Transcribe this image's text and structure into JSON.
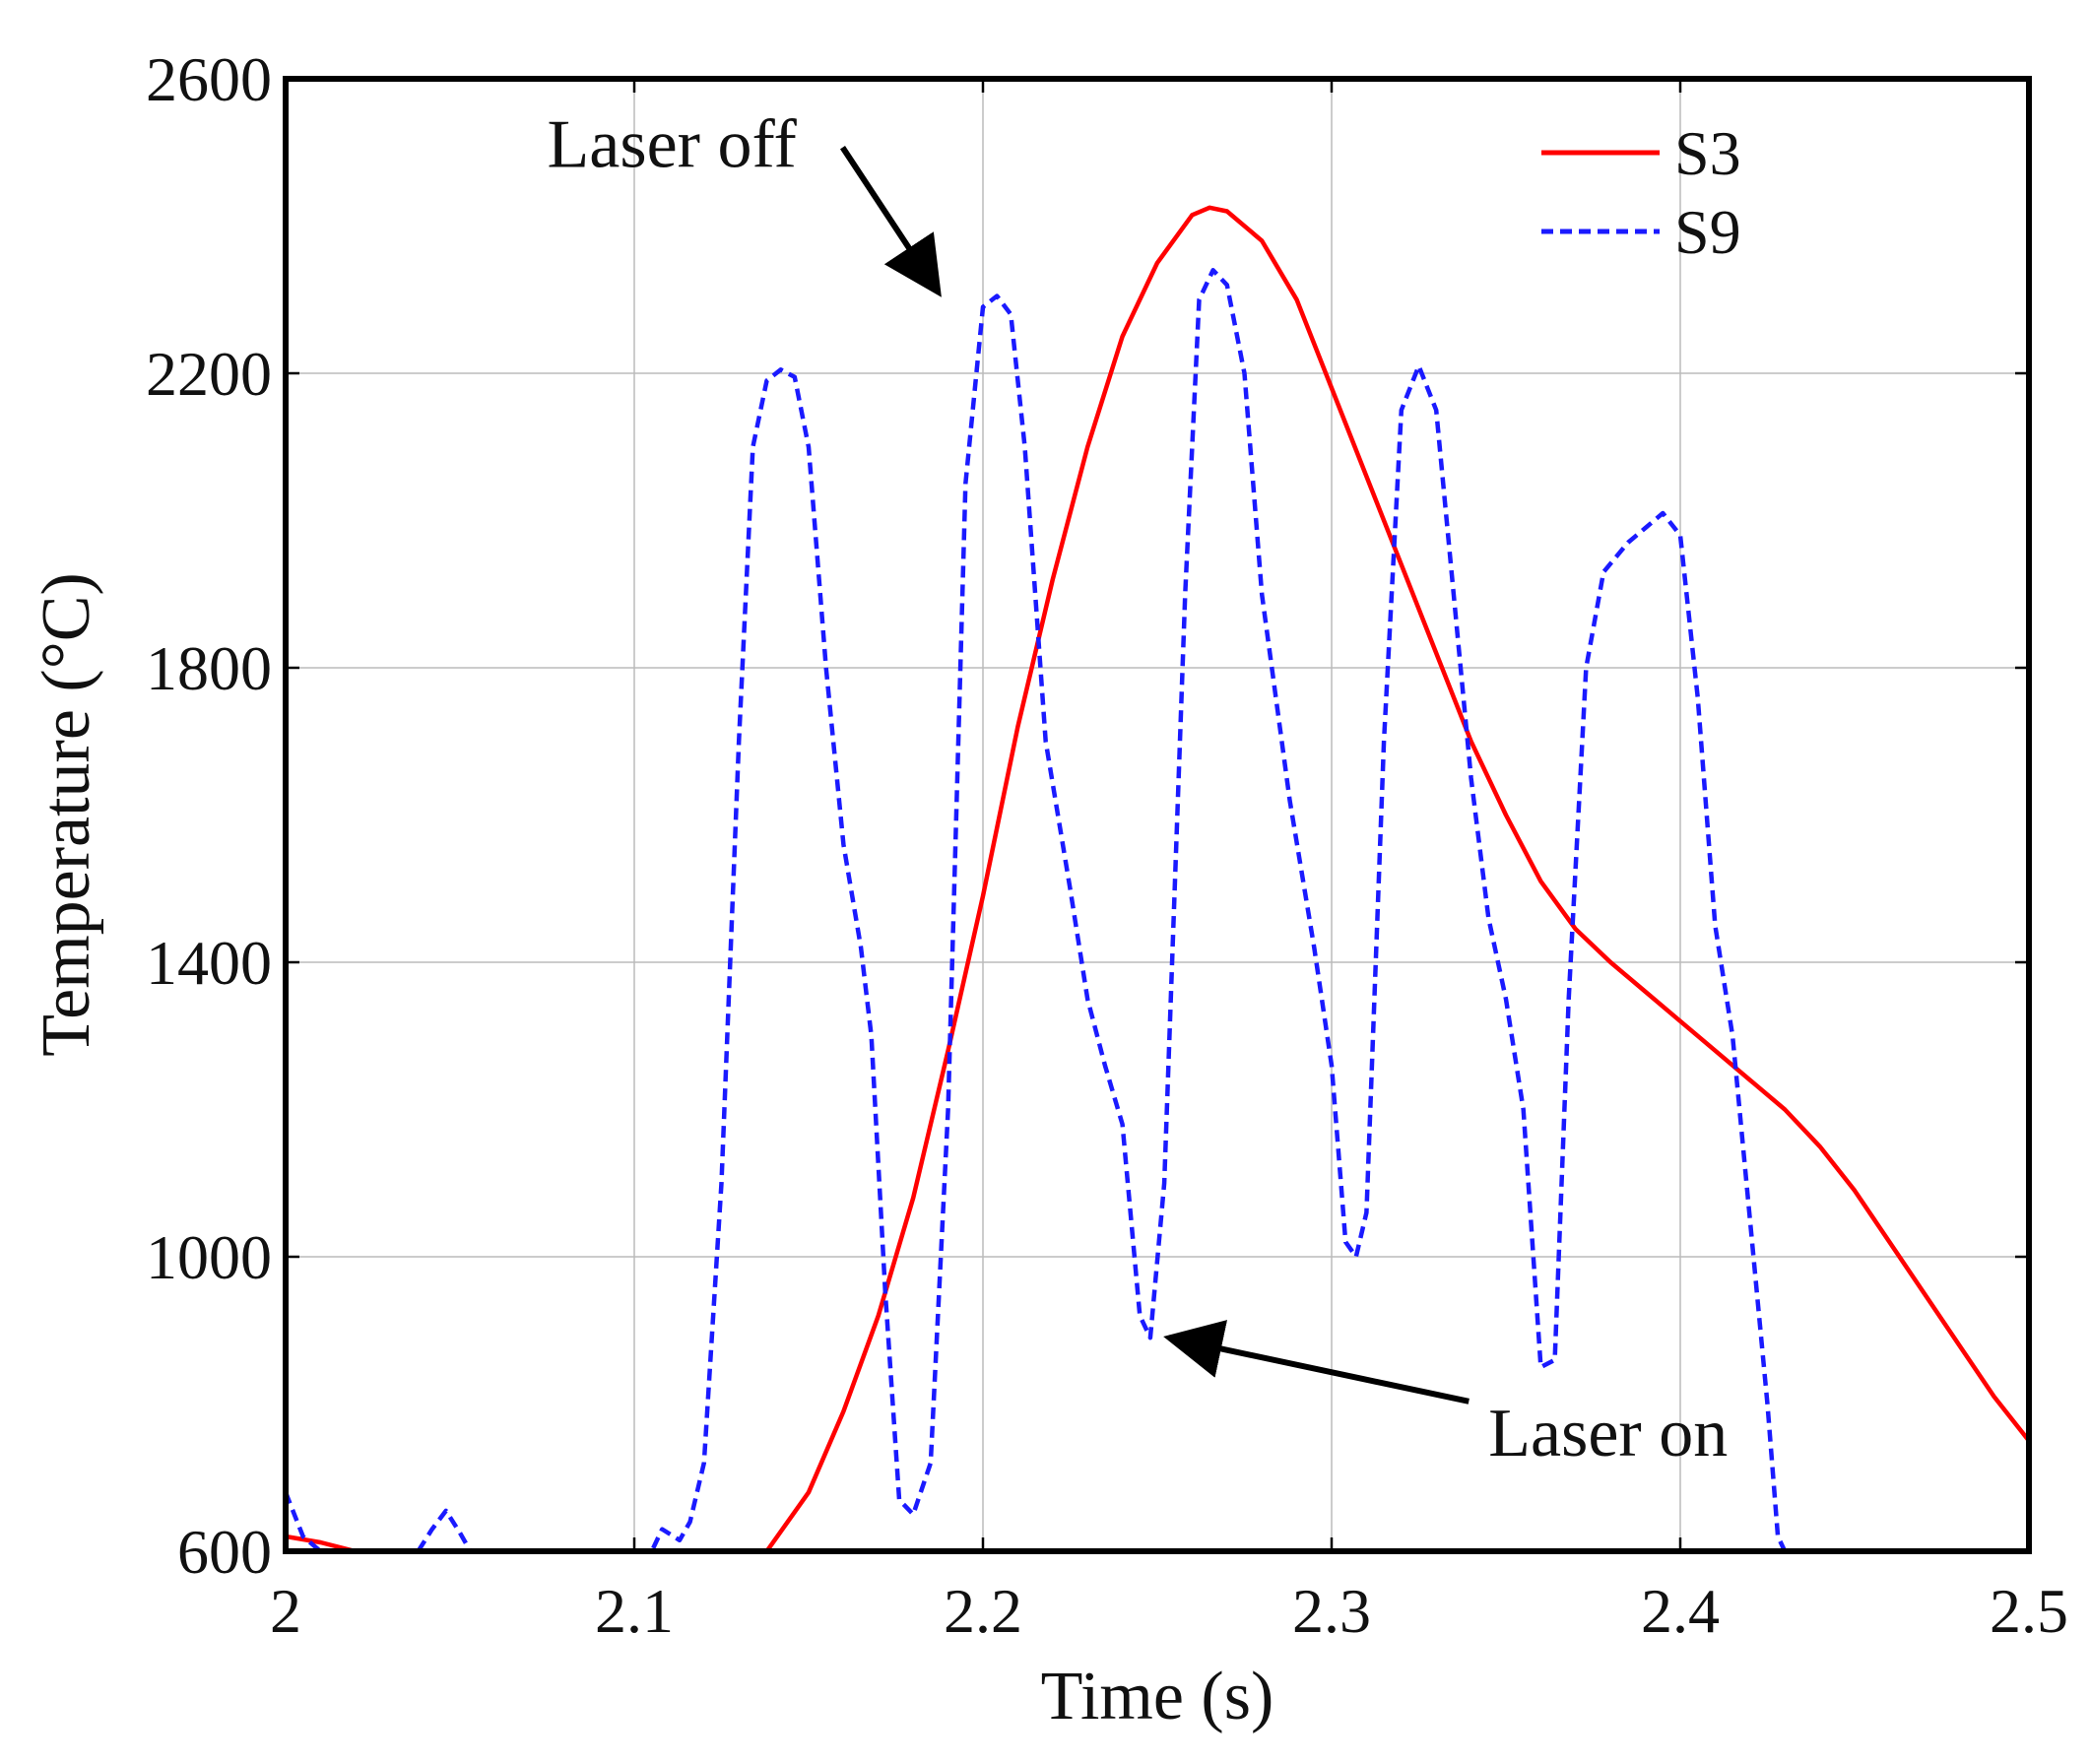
{
  "chart_data": {
    "type": "line",
    "title": "",
    "xlabel": "Time (s)",
    "ylabel": "Temperature (°C)",
    "xlim": [
      2.0,
      2.5
    ],
    "ylim": [
      600,
      2600
    ],
    "xticks": [
      2.0,
      2.1,
      2.2,
      2.3,
      2.4,
      2.5
    ],
    "xtick_labels": [
      "2",
      "2.1",
      "2.2",
      "2.3",
      "2.4",
      "2.5"
    ],
    "yticks": [
      600,
      1000,
      1400,
      1800,
      2200,
      2600
    ],
    "ytick_labels": [
      "600",
      "1000",
      "1400",
      "1800",
      "2200",
      "2600"
    ],
    "legend_position": "top-right",
    "series": [
      {
        "name": "S3",
        "color": "#ff0000",
        "style": "solid",
        "points": [
          [
            2.0,
            620
          ],
          [
            2.01,
            612
          ],
          [
            2.02,
            600
          ],
          [
            2.138,
            600
          ],
          [
            2.15,
            680
          ],
          [
            2.16,
            790
          ],
          [
            2.17,
            920
          ],
          [
            2.18,
            1080
          ],
          [
            2.19,
            1280
          ],
          [
            2.2,
            1490
          ],
          [
            2.21,
            1720
          ],
          [
            2.22,
            1920
          ],
          [
            2.23,
            2100
          ],
          [
            2.24,
            2250
          ],
          [
            2.25,
            2350
          ],
          [
            2.26,
            2415
          ],
          [
            2.265,
            2425
          ],
          [
            2.27,
            2420
          ],
          [
            2.28,
            2380
          ],
          [
            2.29,
            2300
          ],
          [
            2.3,
            2180
          ],
          [
            2.31,
            2060
          ],
          [
            2.32,
            1940
          ],
          [
            2.33,
            1820
          ],
          [
            2.34,
            1700
          ],
          [
            2.35,
            1600
          ],
          [
            2.36,
            1510
          ],
          [
            2.37,
            1445
          ],
          [
            2.38,
            1400
          ],
          [
            2.39,
            1360
          ],
          [
            2.4,
            1320
          ],
          [
            2.41,
            1280
          ],
          [
            2.42,
            1240
          ],
          [
            2.43,
            1200
          ],
          [
            2.44,
            1150
          ],
          [
            2.45,
            1090
          ],
          [
            2.46,
            1020
          ],
          [
            2.47,
            950
          ],
          [
            2.48,
            880
          ],
          [
            2.49,
            810
          ],
          [
            2.5,
            750
          ]
        ]
      },
      {
        "name": "S9",
        "color": "#1a1aff",
        "style": "dashed",
        "points": [
          [
            2.0,
            680
          ],
          [
            2.005,
            620
          ],
          [
            2.01,
            600
          ],
          [
            2.038,
            600
          ],
          [
            2.042,
            630
          ],
          [
            2.046,
            655
          ],
          [
            2.05,
            625
          ],
          [
            2.053,
            600
          ],
          [
            2.105,
            600
          ],
          [
            2.108,
            630
          ],
          [
            2.113,
            615
          ],
          [
            2.116,
            640
          ],
          [
            2.12,
            720
          ],
          [
            2.125,
            1100
          ],
          [
            2.13,
            1700
          ],
          [
            2.134,
            2100
          ],
          [
            2.138,
            2190
          ],
          [
            2.142,
            2205
          ],
          [
            2.146,
            2195
          ],
          [
            2.15,
            2100
          ],
          [
            2.155,
            1800
          ],
          [
            2.16,
            1560
          ],
          [
            2.165,
            1420
          ],
          [
            2.168,
            1300
          ],
          [
            2.172,
            950
          ],
          [
            2.176,
            670
          ],
          [
            2.18,
            650
          ],
          [
            2.185,
            720
          ],
          [
            2.19,
            1200
          ],
          [
            2.195,
            2050
          ],
          [
            2.2,
            2290
          ],
          [
            2.204,
            2305
          ],
          [
            2.208,
            2280
          ],
          [
            2.212,
            2100
          ],
          [
            2.218,
            1700
          ],
          [
            2.225,
            1500
          ],
          [
            2.23,
            1350
          ],
          [
            2.235,
            1260
          ],
          [
            2.24,
            1180
          ],
          [
            2.245,
            920
          ],
          [
            2.248,
            890
          ],
          [
            2.252,
            1100
          ],
          [
            2.258,
            1900
          ],
          [
            2.262,
            2300
          ],
          [
            2.266,
            2340
          ],
          [
            2.27,
            2320
          ],
          [
            2.275,
            2200
          ],
          [
            2.28,
            1900
          ],
          [
            2.288,
            1620
          ],
          [
            2.295,
            1420
          ],
          [
            2.3,
            1260
          ],
          [
            2.304,
            1020
          ],
          [
            2.307,
            1000
          ],
          [
            2.31,
            1060
          ],
          [
            2.315,
            1700
          ],
          [
            2.32,
            2150
          ],
          [
            2.325,
            2210
          ],
          [
            2.33,
            2150
          ],
          [
            2.335,
            1900
          ],
          [
            2.34,
            1650
          ],
          [
            2.345,
            1460
          ],
          [
            2.35,
            1350
          ],
          [
            2.355,
            1200
          ],
          [
            2.36,
            850
          ],
          [
            2.364,
            860
          ],
          [
            2.368,
            1350
          ],
          [
            2.373,
            1800
          ],
          [
            2.378,
            1930
          ],
          [
            2.385,
            1970
          ],
          [
            2.39,
            1990
          ],
          [
            2.395,
            2010
          ],
          [
            2.4,
            1980
          ],
          [
            2.405,
            1760
          ],
          [
            2.41,
            1450
          ],
          [
            2.415,
            1300
          ],
          [
            2.42,
            1050
          ],
          [
            2.425,
            800
          ],
          [
            2.428,
            620
          ],
          [
            2.43,
            600
          ]
        ]
      }
    ],
    "annotations": [
      {
        "text": "Laser off",
        "x": 2.19,
        "y": 2310,
        "text_at": [
          2.075,
          2480
        ]
      },
      {
        "text": "Laser on",
        "x": 2.25,
        "y": 890,
        "text_at": [
          2.345,
          730
        ]
      }
    ]
  }
}
